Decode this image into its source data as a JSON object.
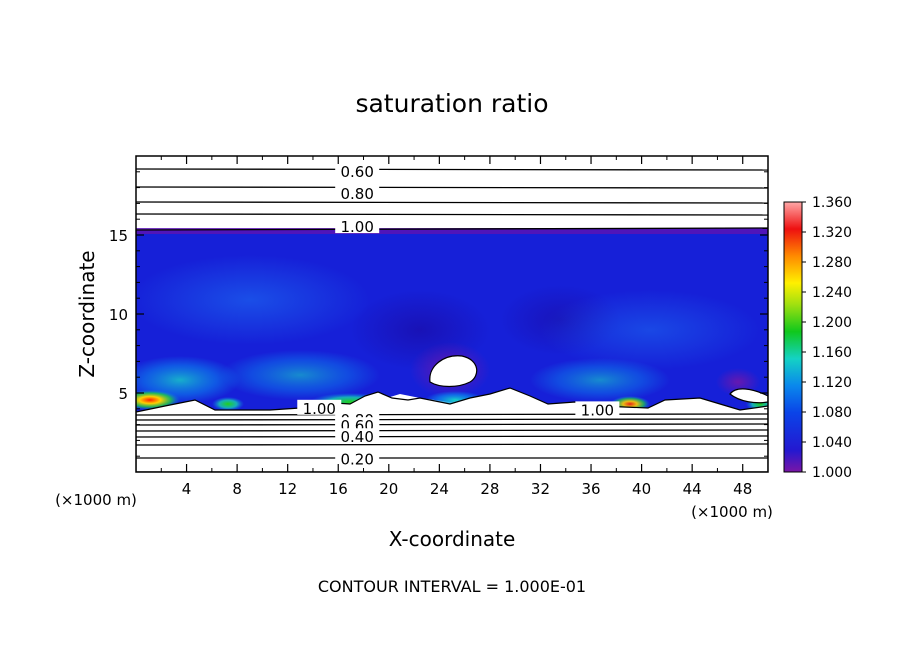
{
  "chart_data": {
    "type": "heatmap",
    "title": "saturation ratio",
    "xlabel": "X-coordinate",
    "ylabel": "Z-coordinate",
    "x_unit_label": "(×1000 m)",
    "z_unit_label": "(×1000 m)",
    "xlim": [
      0,
      50
    ],
    "ylim": [
      0,
      20
    ],
    "x_ticks": [
      4,
      8,
      12,
      16,
      20,
      24,
      28,
      32,
      36,
      40,
      44,
      48
    ],
    "y_ticks": [
      5,
      10,
      15
    ],
    "colorbar": {
      "min": 1.0,
      "max": 1.36,
      "ticks": [
        "1.000",
        "1.040",
        "1.080",
        "1.120",
        "1.160",
        "1.200",
        "1.240",
        "1.280",
        "1.320",
        "1.360"
      ]
    },
    "contour_labels": [
      {
        "text": "0.60",
        "x": 17.5,
        "y": 19.0
      },
      {
        "text": "0.80",
        "x": 17.5,
        "y": 17.6
      },
      {
        "text": "1.00",
        "x": 17.5,
        "y": 15.5
      },
      {
        "text": "1.00",
        "x": 14.5,
        "y": 4.0
      },
      {
        "text": "0.80",
        "x": 17.5,
        "y": 3.3
      },
      {
        "text": "0.60",
        "x": 17.5,
        "y": 2.9
      },
      {
        "text": "0.40",
        "x": 17.5,
        "y": 2.2
      },
      {
        "text": "0.20",
        "x": 17.5,
        "y": 0.8
      },
      {
        "text": "1.00",
        "x": 36.5,
        "y": 3.9
      }
    ],
    "footer": "CONTOUR INTERVAL = 1.000E-01"
  }
}
